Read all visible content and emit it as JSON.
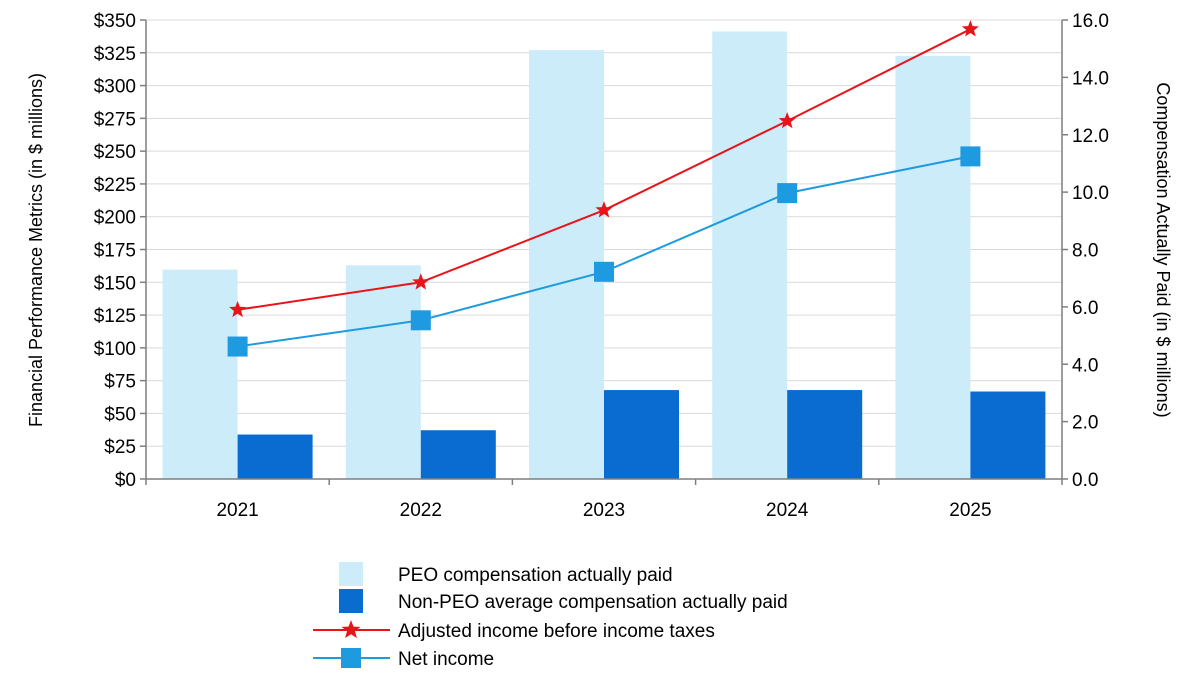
{
  "chart_data": {
    "type": "bar",
    "categories": [
      "2021",
      "2022",
      "2023",
      "2024",
      "2025"
    ],
    "left_axis": {
      "label": "Financial Performance Metrics (in $ millions)",
      "range": [
        0,
        350
      ],
      "ticks": [
        "$0",
        "$25",
        "$50",
        "$75",
        "$100",
        "$125",
        "$150",
        "$175",
        "$200",
        "$225",
        "$250",
        "$275",
        "$300",
        "$325",
        "$350"
      ],
      "tick_values": [
        0,
        25,
        50,
        75,
        100,
        125,
        150,
        175,
        200,
        225,
        250,
        275,
        300,
        325,
        350
      ]
    },
    "right_axis": {
      "label": "Compensation Actually Paid (in $ millions)",
      "range": [
        0,
        16
      ],
      "ticks": [
        "0.0",
        "2.0",
        "4.0",
        "6.0",
        "8.0",
        "10.0",
        "12.0",
        "14.0",
        "16.0"
      ],
      "tick_values": [
        0,
        2,
        4,
        6,
        8,
        10,
        12,
        14,
        16
      ]
    },
    "grid": true,
    "legend_position": "bottom",
    "series": [
      {
        "name": "PEO compensation actually paid",
        "type": "bar",
        "axis": "right",
        "color": "#cdecfa",
        "values": [
          7.3,
          7.45,
          14.95,
          15.6,
          14.75
        ]
      },
      {
        "name": "Non-PEO average compensation actually paid",
        "type": "bar",
        "axis": "right",
        "color": "#0a6bd0",
        "values": [
          1.55,
          1.7,
          3.1,
          3.1,
          3.05
        ]
      },
      {
        "name": "Adjusted income before income taxes",
        "type": "line",
        "axis": "left",
        "color": "#e8141a",
        "marker": "star",
        "values": [
          129,
          150,
          205,
          273,
          343
        ]
      },
      {
        "name": "Net income",
        "type": "line",
        "axis": "left",
        "color": "#1e9be0",
        "marker": "square",
        "values": [
          101,
          121,
          158,
          218,
          246
        ]
      }
    ]
  }
}
